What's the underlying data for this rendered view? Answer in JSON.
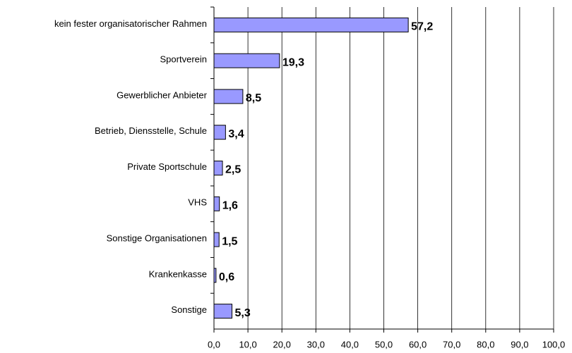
{
  "chart_data": {
    "type": "bar",
    "orientation": "horizontal",
    "categories": [
      "kein fester organisatorischer Rahmen",
      "Sportverein",
      "Gewerblicher Anbieter",
      "Betrieb, Diensstelle, Schule",
      "Private Sportschule",
      "VHS",
      "Sonstige Organisationen",
      "Krankenkasse",
      "Sonstige"
    ],
    "values": [
      57.2,
      19.3,
      8.5,
      3.4,
      2.5,
      1.6,
      1.5,
      0.6,
      5.3
    ],
    "value_labels": [
      "57,2",
      "19,3",
      "8,5",
      "3,4",
      "2,5",
      "1,6",
      "1,5",
      "0,6",
      "5,3"
    ],
    "color": "#9999ff",
    "xlim": [
      0,
      100
    ],
    "xticks": [
      {
        "value": 0,
        "label": "0,0"
      },
      {
        "value": 10,
        "label": "10,0"
      },
      {
        "value": 20,
        "label": "20,0"
      },
      {
        "value": 30,
        "label": "30,0"
      },
      {
        "value": 40,
        "label": "40,0"
      },
      {
        "value": 50,
        "label": "50,0"
      },
      {
        "value": 60,
        "label": "60,0"
      },
      {
        "value": 70,
        "label": "70,0"
      },
      {
        "value": 80,
        "label": "80,0"
      },
      {
        "value": 90,
        "label": "90,0"
      },
      {
        "value": 100,
        "label": "100,0"
      }
    ],
    "grid": true
  }
}
